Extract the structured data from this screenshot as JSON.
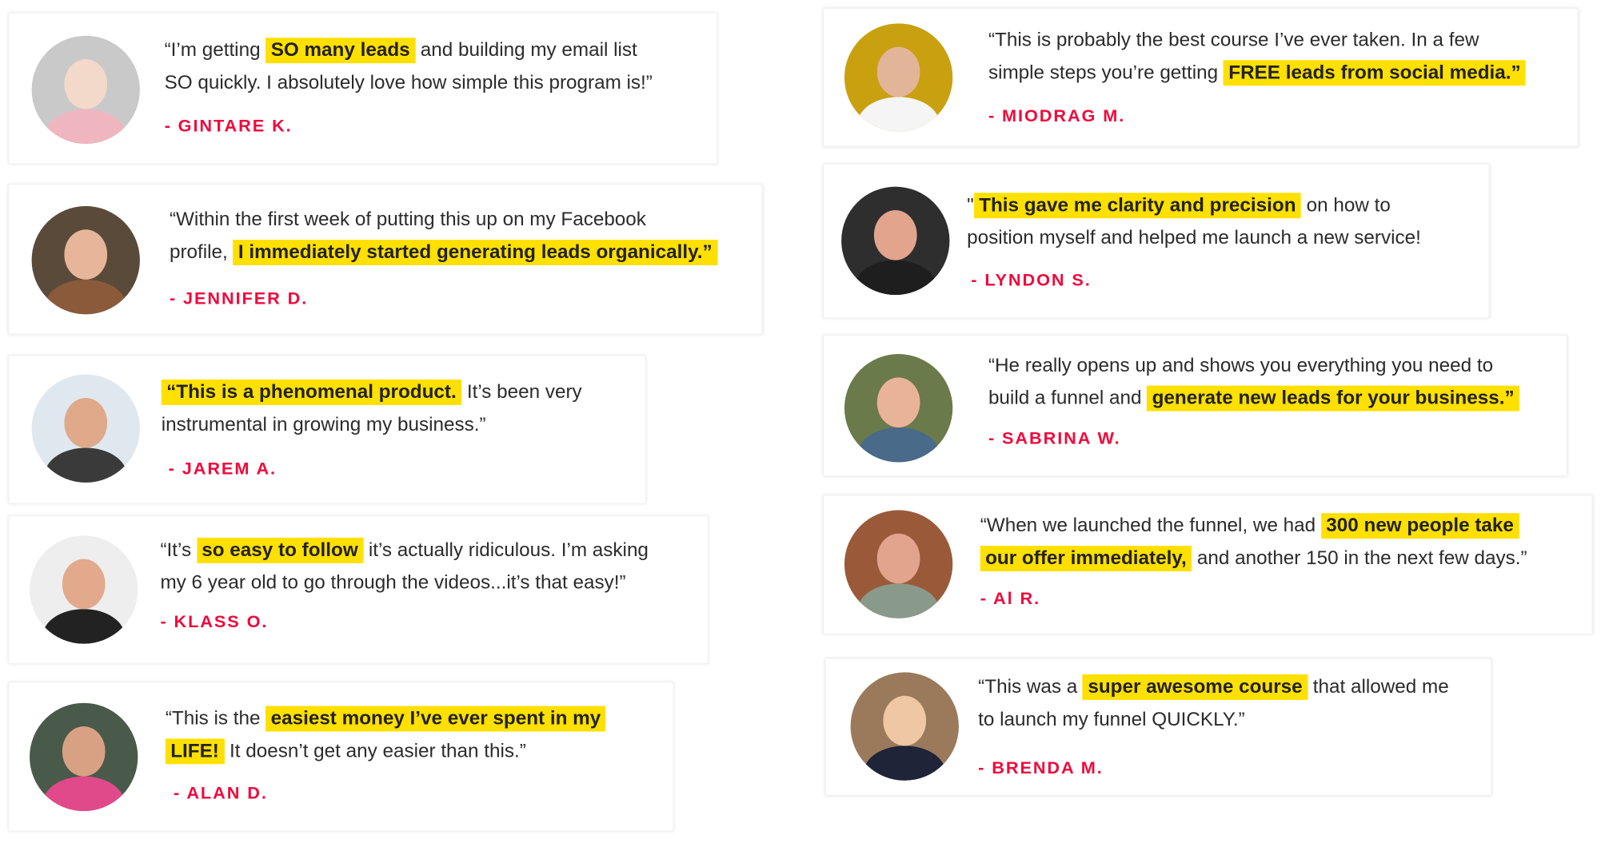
{
  "colors": {
    "highlight": "#ffe000",
    "author": "#ef0a3c",
    "text": "#2b2b2b"
  },
  "testimonials": [
    {
      "author": "- GINTARE K.",
      "avatar_colors": [
        "#c9c9c9",
        "#f2d9c9",
        "#f0b6c0"
      ],
      "lines": [
        [
          {
            "t": "“I’m getting "
          },
          {
            "t": "SO many leads",
            "hl": true
          },
          {
            "t": " and building my email list"
          }
        ],
        [
          {
            "t": "SO quickly. I absolutely love how simple this program is!”"
          }
        ]
      ]
    },
    {
      "author": "- JENNIFER D.",
      "avatar_colors": [
        "#5a4a3a",
        "#e7b59a",
        "#8a5a3a"
      ],
      "lines": [
        [
          {
            "t": "“Within the first week of putting this up on my Facebook"
          }
        ],
        [
          {
            "t": "profile, "
          },
          {
            "t": "I immediately started generating leads organically.”",
            "hl": true
          }
        ]
      ]
    },
    {
      "author": "- JAREM A.",
      "avatar_colors": [
        "#dfe8ef",
        "#e0a98a",
        "#3a3a3a"
      ],
      "lines": [
        [
          {
            "t": "“This is a phenomenal product.",
            "hl": true
          },
          {
            "t": " It’s been very"
          }
        ],
        [
          {
            "t": "instrumental in growing my business.”"
          }
        ]
      ]
    },
    {
      "author": "- KLASS O.",
      "avatar_colors": [
        "#eeeeee",
        "#e2a98c",
        "#222222"
      ],
      "lines": [
        [
          {
            "t": "“It’s "
          },
          {
            "t": "so easy to follow",
            "hl": true
          },
          {
            "t": " it’s actually ridiculous. I’m asking"
          }
        ],
        [
          {
            "t": "my 6 year old to go through the videos...it’s that easy!”"
          }
        ]
      ]
    },
    {
      "author": "- ALAN D.",
      "avatar_colors": [
        "#4a5a4a",
        "#d9a184",
        "#e04a8a"
      ],
      "lines": [
        [
          {
            "t": "“This is the "
          },
          {
            "t": "easiest money I’ve ever spent in my",
            "hl": true
          }
        ],
        [
          {
            "t": "LIFE!",
            "hl": true
          },
          {
            "t": " It doesn’t get any easier than this.”"
          }
        ]
      ]
    },
    {
      "author": "- MIODRAG M.",
      "avatar_colors": [
        "#c9a010",
        "#e3b598",
        "#f5f5f5"
      ],
      "lines": [
        [
          {
            "t": "“This is probably the best course I’ve ever taken. In a few"
          }
        ],
        [
          {
            "t": "simple steps you’re getting "
          },
          {
            "t": "FREE leads from social media.”",
            "hl": true
          }
        ]
      ]
    },
    {
      "author": "- LYNDON S.",
      "avatar_colors": [
        "#2e2e2e",
        "#e2a48c",
        "#1e1e1e"
      ],
      "lines": [
        [
          {
            "t": "\""
          },
          {
            "t": "This gave me clarity and precision",
            "hl": true
          },
          {
            "t": " on how to"
          }
        ],
        [
          {
            "t": "position myself and helped me launch a new service!"
          }
        ]
      ]
    },
    {
      "author": "- SABRINA W.",
      "avatar_colors": [
        "#6a7a4a",
        "#e8b399",
        "#4a6a8a"
      ],
      "lines": [
        [
          {
            "t": "“He really opens up and shows you everything you need to"
          }
        ],
        [
          {
            "t": "build a funnel and "
          },
          {
            "t": "generate new leads for your business.”",
            "hl": true
          }
        ]
      ]
    },
    {
      "author": "- Al R.",
      "avatar_colors": [
        "#9a5a3a",
        "#e2a48c",
        "#8a9a8a"
      ],
      "lines": [
        [
          {
            "t": "“When we launched the funnel, we had "
          },
          {
            "t": "300 new people take",
            "hl": true
          }
        ],
        [
          {
            "t": "our offer immediately,",
            "hl": true
          },
          {
            "t": " and another 150 in the next few days.”"
          }
        ]
      ]
    },
    {
      "author": "- BRENDA M.",
      "avatar_colors": [
        "#9a7a5a",
        "#f0c7a4",
        "#1f2438"
      ],
      "lines": [
        [
          {
            "t": "“This was a "
          },
          {
            "t": "super awesome course",
            "hl": true
          },
          {
            "t": " that allowed me"
          }
        ],
        [
          {
            "t": "to launch my funnel QUICKLY.”"
          }
        ]
      ]
    }
  ]
}
